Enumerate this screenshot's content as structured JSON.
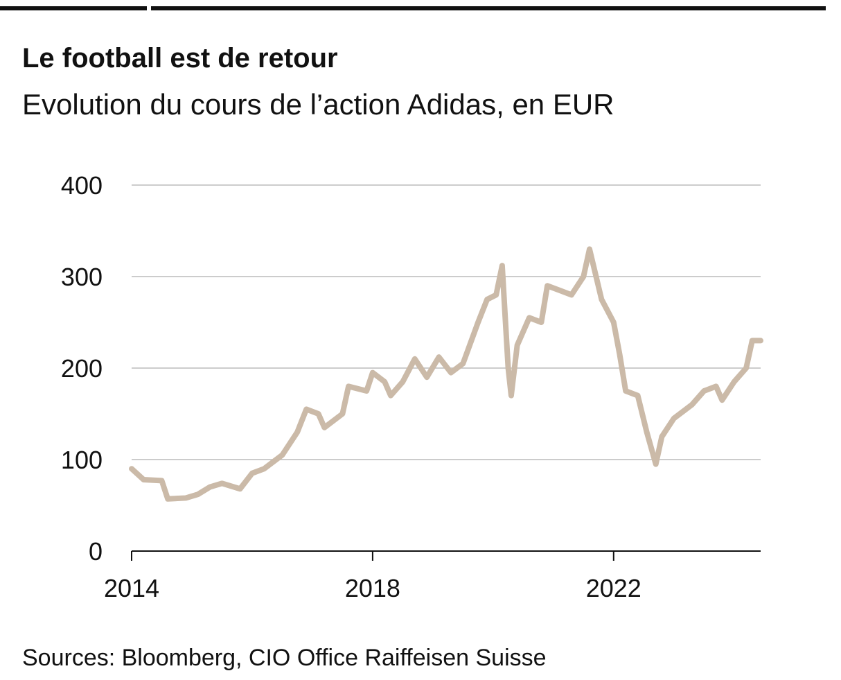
{
  "chart_data": {
    "type": "line",
    "title": "Le football est de retour",
    "subtitle": "Evolution du cours de l’action Adidas, en EUR",
    "source": "Sources: Bloomberg, CIO Office Raiffeisen Suisse",
    "x": [
      2014.0,
      2014.2,
      2014.5,
      2014.6,
      2014.9,
      2015.1,
      2015.3,
      2015.5,
      2015.8,
      2016.0,
      2016.2,
      2016.5,
      2016.75,
      2016.9,
      2017.1,
      2017.2,
      2017.5,
      2017.6,
      2017.9,
      2018.0,
      2018.2,
      2018.3,
      2018.5,
      2018.7,
      2018.9,
      2019.1,
      2019.3,
      2019.5,
      2019.75,
      2019.9,
      2020.05,
      2020.15,
      2020.25,
      2020.3,
      2020.4,
      2020.6,
      2020.8,
      2020.9,
      2021.1,
      2021.3,
      2021.5,
      2021.6,
      2021.8,
      2022.0,
      2022.1,
      2022.2,
      2022.4,
      2022.55,
      2022.7,
      2022.8,
      2023.0,
      2023.3,
      2023.5,
      2023.7,
      2023.8,
      2024.0,
      2024.2,
      2024.3,
      2024.44
    ],
    "series": [
      {
        "name": "Adidas",
        "color": "#cbbaa8",
        "values": [
          90,
          78,
          77,
          57,
          58,
          62,
          70,
          74,
          68,
          85,
          90,
          105,
          130,
          155,
          150,
          135,
          150,
          180,
          175,
          195,
          185,
          170,
          185,
          210,
          190,
          212,
          195,
          205,
          250,
          275,
          280,
          312,
          200,
          170,
          225,
          255,
          250,
          290,
          285,
          280,
          300,
          330,
          275,
          250,
          215,
          175,
          170,
          130,
          95,
          125,
          145,
          160,
          175,
          180,
          165,
          185,
          200,
          230,
          230
        ]
      }
    ],
    "xlim": [
      2014,
      2024.44
    ],
    "xticks": [
      2014,
      2018,
      2022
    ],
    "ylim": [
      0,
      400
    ],
    "yticks": [
      0,
      100,
      200,
      300,
      400
    ],
    "grid": true
  }
}
